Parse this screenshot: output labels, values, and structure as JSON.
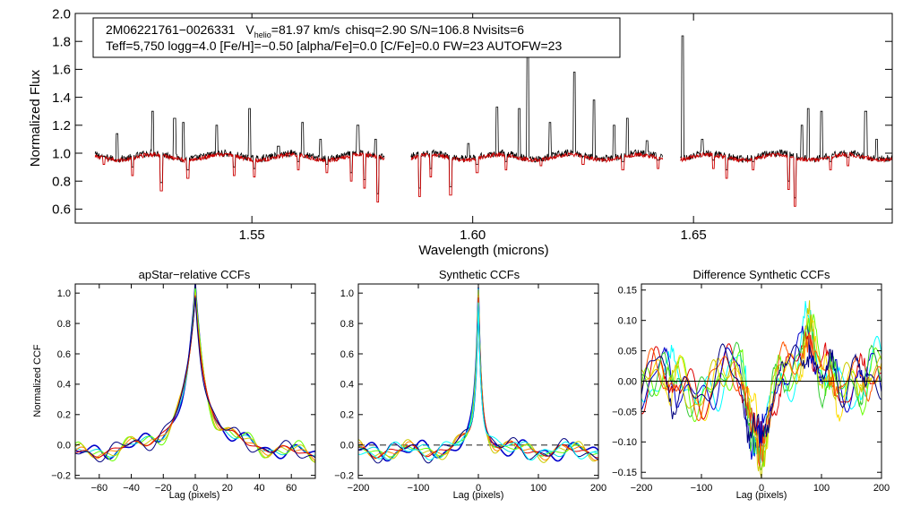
{
  "colors": {
    "axis": "#000000",
    "observed": "#000000",
    "model": "#cc0000",
    "ccf_series": [
      "#000080",
      "#0000cc",
      "#00ffff",
      "#00dddd",
      "#33cc33",
      "#66ff00",
      "#99ff33",
      "#cccc00",
      "#ffdd00",
      "#ff8800",
      "#ff5500",
      "#dd0000",
      "#880000"
    ],
    "zero_line": "#666666"
  },
  "chart_data": [
    {
      "id": "spectrum",
      "type": "line",
      "title": "",
      "xlabel": "Wavelength (microns)",
      "ylabel": "Normalized Flux",
      "xlim": [
        1.51,
        1.695
      ],
      "ylim": [
        0.5,
        2.0
      ],
      "xticks": [
        1.55,
        1.6,
        1.65
      ],
      "xtick_labels": [
        "1.55",
        "1.60",
        "1.65"
      ],
      "yticks": [
        0.6,
        0.8,
        1.0,
        1.2,
        1.4,
        1.6,
        1.8,
        2.0
      ],
      "ytick_labels": [
        "0.6",
        "0.8",
        "1.0",
        "1.2",
        "1.4",
        "1.6",
        "1.8",
        "2.0"
      ],
      "annotation": {
        "id": "2M06221761−0026331",
        "vhelio_label": "V",
        "vhelio_sub": "helio",
        "vhelio_value": "=81.97 km/s",
        "stats": "chisq=2.90  S/N=106.8  Nvisits=6",
        "line2": "Teff=5,750 logg=4.0 [Fe/H]=−0.50 [alpha/Fe]=0.0 [C/Fe]=0.0 FW=23 AUTOFW=23"
      },
      "chips": [
        [
          1.5145,
          1.58
        ],
        [
          1.586,
          1.643
        ],
        [
          1.647,
          1.695
        ]
      ],
      "series": [
        {
          "name": "observed",
          "color": "#000000",
          "continuum": 0.98,
          "emission": [
            [
              1.5195,
              1.14
            ],
            [
              1.5275,
              1.3
            ],
            [
              1.5325,
              1.25
            ],
            [
              1.5345,
              1.22
            ],
            [
              1.542,
              1.2
            ],
            [
              1.5495,
              1.32
            ],
            [
              1.556,
              1.05
            ],
            [
              1.5615,
              1.22
            ],
            [
              1.5655,
              1.1
            ],
            [
              1.574,
              1.2
            ],
            [
              1.578,
              1.1
            ],
            [
              1.599,
              1.07
            ],
            [
              1.6055,
              1.33
            ],
            [
              1.6105,
              1.32
            ],
            [
              1.6125,
              1.72
            ],
            [
              1.6175,
              1.22
            ],
            [
              1.623,
              1.58
            ],
            [
              1.6275,
              1.38
            ],
            [
              1.632,
              1.2
            ],
            [
              1.635,
              1.25
            ],
            [
              1.6395,
              1.09
            ],
            [
              1.6475,
              1.84
            ],
            [
              1.652,
              1.1
            ],
            [
              1.6745,
              1.2
            ],
            [
              1.676,
              1.32
            ],
            [
              1.679,
              1.3
            ],
            [
              1.685,
              1.06
            ],
            [
              1.689,
              1.3
            ],
            [
              1.6915,
              1.1
            ]
          ],
          "absorption": [
            [
              1.5165,
              0.92
            ],
            [
              1.523,
              0.84
            ],
            [
              1.5295,
              0.73
            ],
            [
              1.5355,
              0.82
            ],
            [
              1.546,
              0.84
            ],
            [
              1.5505,
              0.83
            ],
            [
              1.5605,
              0.88
            ],
            [
              1.567,
              0.86
            ],
            [
              1.5725,
              0.8
            ],
            [
              1.5755,
              0.75
            ],
            [
              1.5785,
              0.65
            ],
            [
              1.588,
              0.69
            ],
            [
              1.5905,
              0.83
            ],
            [
              1.595,
              0.7
            ],
            [
              1.601,
              0.86
            ],
            [
              1.6075,
              0.88
            ],
            [
              1.6155,
              0.91
            ],
            [
              1.625,
              0.92
            ],
            [
              1.634,
              0.88
            ],
            [
              1.642,
              0.89
            ],
            [
              1.6545,
              0.89
            ],
            [
              1.6575,
              0.82
            ],
            [
              1.6635,
              0.88
            ],
            [
              1.6715,
              0.74
            ],
            [
              1.673,
              0.62
            ],
            [
              1.681,
              0.88
            ],
            [
              1.685,
              0.91
            ]
          ]
        },
        {
          "name": "model",
          "color": "#cc0000",
          "continuum": 0.97
        }
      ]
    },
    {
      "id": "apstar_ccf",
      "type": "line",
      "title": "apStar−relative CCFs",
      "xlabel": "Lag (pixels)",
      "ylabel": "Normalized CCF",
      "xlim": [
        -75,
        75
      ],
      "ylim": [
        -0.22,
        1.06
      ],
      "xticks": [
        -60,
        -40,
        -20,
        0,
        20,
        40,
        60
      ],
      "xtick_labels": [
        "−60",
        "−40",
        "−20",
        "0",
        "20",
        "40",
        "60"
      ],
      "yticks": [
        -0.2,
        0.0,
        0.2,
        0.4,
        0.6,
        0.8,
        1.0
      ],
      "ytick_labels": [
        "−0.2",
        "0.0",
        "0.2",
        "0.4",
        "0.6",
        "0.8",
        "1.0"
      ],
      "peak": 1.0,
      "core_width": 7,
      "wing_amp": 0.3,
      "wing_width": 28,
      "floor": -0.08,
      "series_count": 7
    },
    {
      "id": "synthetic_ccf",
      "type": "line",
      "title": "Synthetic CCFs",
      "xlabel": "Lag (pixels)",
      "ylabel": "",
      "xlim": [
        -200,
        200
      ],
      "ylim": [
        -0.22,
        1.06
      ],
      "xticks": [
        -200,
        -100,
        0,
        100,
        200
      ],
      "xtick_labels": [
        "−200",
        "−100",
        "0",
        "100",
        "200"
      ],
      "yticks": [
        -0.2,
        0.0,
        0.2,
        0.4,
        0.6,
        0.8,
        1.0
      ],
      "ytick_labels": [
        "−0.2",
        "0.0",
        "0.2",
        "0.4",
        "0.6",
        "0.8",
        "1.0"
      ],
      "peak": 1.0,
      "core_width": 6,
      "wing_amp": 0.22,
      "wing_width": 20,
      "floor": -0.04,
      "dashed_zero_line": true,
      "series_count": 8
    },
    {
      "id": "difference_ccf",
      "type": "line",
      "title": "Difference Synthetic CCFs",
      "xlabel": "Lag (pixels)",
      "ylabel": "",
      "xlim": [
        -200,
        200
      ],
      "ylim": [
        -0.16,
        0.16
      ],
      "xticks": [
        -200,
        -100,
        0,
        100,
        200
      ],
      "xtick_labels": [
        "−200",
        "−100",
        "0",
        "100",
        "200"
      ],
      "yticks": [
        -0.15,
        -0.1,
        -0.05,
        0.0,
        0.05,
        0.1,
        0.15
      ],
      "ytick_labels": [
        "−0.15",
        "−0.10",
        "−0.05",
        "0.00",
        "0.05",
        "0.10",
        "0.15"
      ],
      "zero_line": true,
      "features": [
        [
          -150,
          -0.03
        ],
        [
          -20,
          -0.06
        ],
        [
          0,
          -0.08
        ],
        [
          30,
          0.02
        ],
        [
          80,
          0.06
        ],
        [
          115,
          0.05
        ],
        [
          170,
          -0.03
        ]
      ],
      "series_count": 9
    }
  ]
}
